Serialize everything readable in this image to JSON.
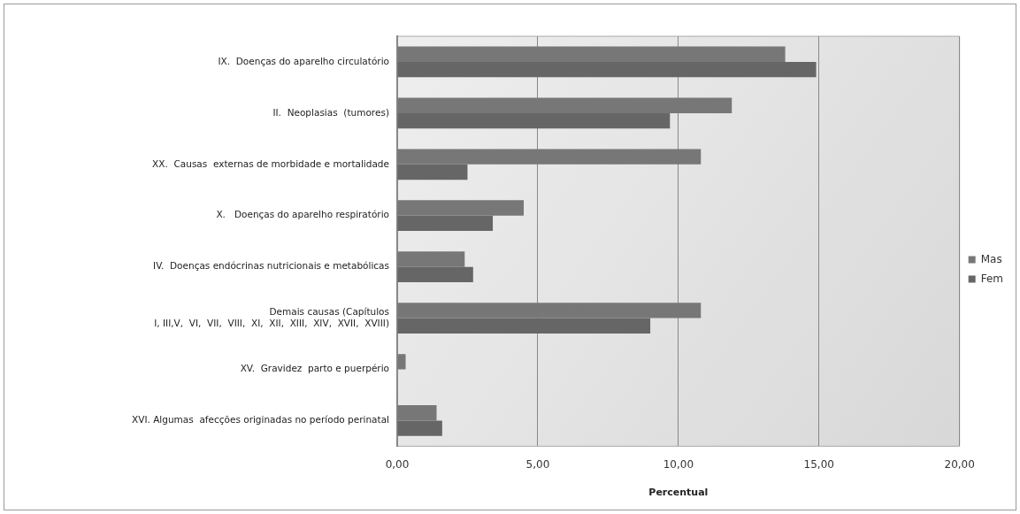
{
  "chart_data": {
    "type": "bar",
    "orientation": "horizontal",
    "xlabel": "Percentual",
    "categories": [
      "IX.  Doenças do aparelho circulatório",
      "II.  Neoplasias  (tumores)",
      "XX.  Causas  externas de morbidade e mortalidade",
      "X.   Doenças do aparelho respiratório",
      "IV.  Doenças endócrinas nutricionais e metabólicas",
      "Demais causas (Capítulos\nI, III,V,  VI,  VII,  VIII,  XI,  XII,  XIII,  XIV,  XVII,  XVIII)",
      "XV.  Gravidez  parto e puerpério",
      "XVI. Algumas  afecções originadas no período perinatal"
    ],
    "series": [
      {
        "name": "Mas",
        "color": "#777777",
        "values": [
          13.8,
          11.9,
          10.8,
          4.5,
          2.4,
          10.8,
          0.3,
          1.4
        ]
      },
      {
        "name": "Fem",
        "color": "#666666",
        "values": [
          14.9,
          9.7,
          2.5,
          3.4,
          2.7,
          9.0,
          0,
          1.6
        ]
      }
    ],
    "xlim": [
      0,
      20
    ],
    "xticks": [
      {
        "value": 0,
        "label": "0,00"
      },
      {
        "value": 5,
        "label": "5,00"
      },
      {
        "value": 10,
        "label": "10,00"
      },
      {
        "value": 15,
        "label": "15,00"
      },
      {
        "value": 20,
        "label": "20,00"
      }
    ],
    "grid": "x",
    "legend": "right"
  }
}
